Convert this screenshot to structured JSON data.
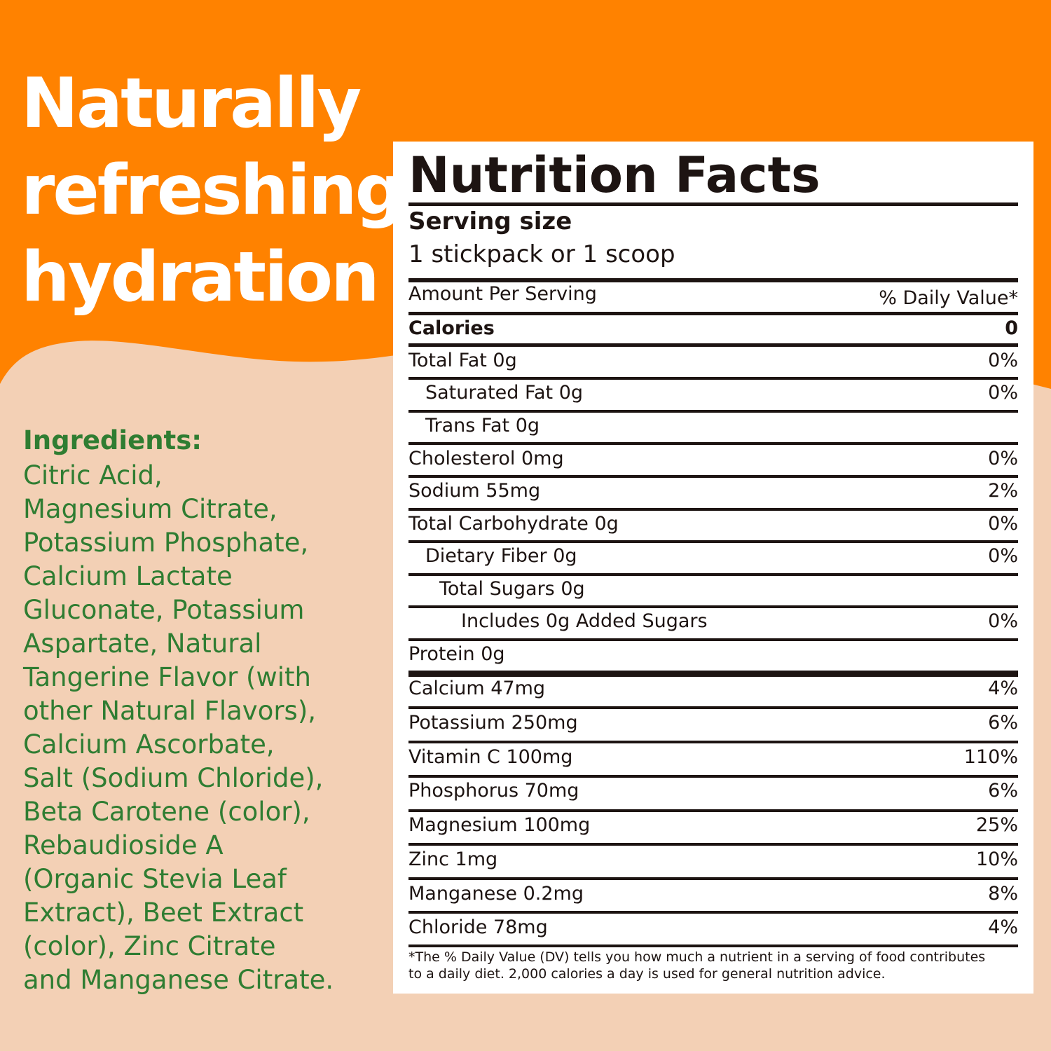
{
  "colors": {
    "orange": "#ff8200",
    "peach": "#f3d0b5",
    "green": "#2f7d32",
    "ink": "#1d1412"
  },
  "headline": [
    "Naturally",
    "refreshing",
    "hydration"
  ],
  "ingredients": {
    "title": "Ingredients:",
    "lines": [
      "Citric Acid,",
      "Magnesium Citrate,",
      "Potassium Phosphate,",
      "Calcium Lactate",
      "Gluconate, Potassium",
      "Aspartate, Natural",
      "Tangerine Flavor (with",
      "other Natural Flavors),",
      "Calcium Ascorbate,",
      "Salt (Sodium Chloride),",
      "Beta Carotene (color),",
      "Rebaudioside A",
      "(Organic Stevia Leaf",
      "Extract), Beet Extract",
      "(color), Zinc Citrate",
      "and Manganese Citrate."
    ]
  },
  "facts": {
    "title": "Nutrition Facts",
    "serving_label": "Serving size",
    "serving_value": "1 stickpack or 1 scoop",
    "amount_label": "Amount Per Serving",
    "dv_label": "% Daily Value*",
    "calories_label": "Calories",
    "calories_value": "0",
    "rows": [
      {
        "name": "Total Fat 0g",
        "dv": "0%"
      },
      {
        "name": "Saturated Fat 0g",
        "dv": "0%"
      },
      {
        "name": "Trans Fat 0g",
        "dv": ""
      },
      {
        "name": "Cholesterol 0mg",
        "dv": "0%"
      },
      {
        "name": "Sodium 55mg",
        "dv": "2%"
      },
      {
        "name": "Total Carbohydrate 0g",
        "dv": "0%"
      },
      {
        "name": "Dietary Fiber 0g",
        "dv": "0%"
      },
      {
        "name": "Total Sugars 0g",
        "dv": ""
      },
      {
        "name": "Includes 0g Added Sugars",
        "dv": "0%"
      },
      {
        "name": "Protein 0g",
        "dv": ""
      }
    ],
    "minerals": [
      {
        "name": "Calcium 47mg",
        "dv": "4%"
      },
      {
        "name": "Potassium 250mg",
        "dv": "6%"
      },
      {
        "name": "Vitamin C 100mg",
        "dv": "110%"
      },
      {
        "name": "Phosphorus 70mg",
        "dv": "6%"
      },
      {
        "name": "Magnesium 100mg",
        "dv": "25%"
      },
      {
        "name": "Zinc 1mg",
        "dv": "10%"
      },
      {
        "name": "Manganese 0.2mg",
        "dv": "8%"
      },
      {
        "name": "Chloride 78mg",
        "dv": "4%"
      }
    ],
    "footnote": [
      "*The % Daily Value (DV) tells you how much a nutrient in a serving of food contributes",
      "to a daily diet. 2,000 calories a day is used for general nutrition advice."
    ]
  }
}
